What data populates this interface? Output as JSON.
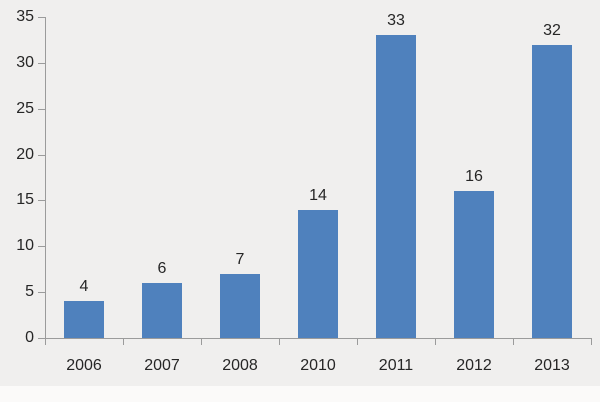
{
  "chart_data": {
    "type": "bar",
    "categories": [
      "2006",
      "2007",
      "2008",
      "2010",
      "2011",
      "2012",
      "2013"
    ],
    "values": [
      4,
      6,
      7,
      14,
      33,
      16,
      32
    ],
    "data_labels": [
      "4",
      "6",
      "7",
      "14",
      "33",
      "16",
      "32"
    ],
    "title": "",
    "xlabel": "",
    "ylabel": "",
    "ylim": [
      0,
      35
    ],
    "yticks": [
      0,
      5,
      10,
      15,
      20,
      25,
      30,
      35
    ],
    "grid": false,
    "legend_position": "none",
    "show_data_labels": true,
    "single_series": true
  },
  "colors": {
    "background": "#f0efee",
    "bottom_strip": "#fbfaf9",
    "bar_fill": "#4f81bd",
    "axis_line": "#9b9b9b",
    "text": "#262626"
  }
}
